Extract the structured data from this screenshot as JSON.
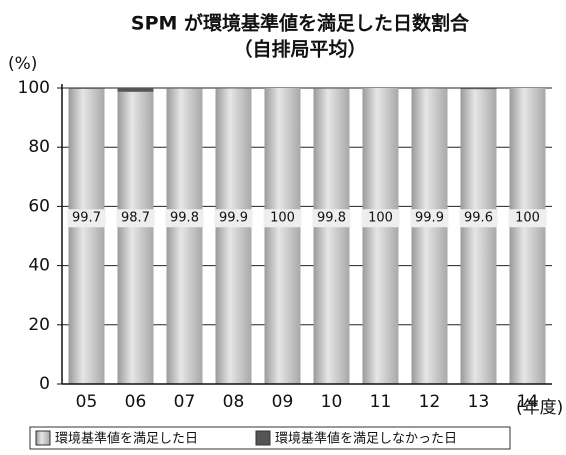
{
  "chart_data": {
    "type": "bar",
    "stacked": true,
    "title": "SPM が環境基準値を満足した日数割合",
    "subtitle": "（自排局平均）",
    "y_label": "(%)",
    "x_label": "(年度)",
    "categories": [
      "05",
      "06",
      "07",
      "08",
      "09",
      "10",
      "11",
      "12",
      "13",
      "14"
    ],
    "series": [
      {
        "name": "環境基準値を満足した日",
        "color": "#c8c8c8",
        "values": [
          99.7,
          98.7,
          99.8,
          99.9,
          100,
          99.8,
          100,
          99.9,
          99.6,
          100
        ]
      },
      {
        "name": "環境基準値を満足しなかった日",
        "color": "#555555",
        "values": [
          0.3,
          1.3,
          0.2,
          0.1,
          0,
          0.2,
          0,
          0.1,
          0.4,
          0
        ]
      }
    ],
    "ylim": [
      0,
      100
    ],
    "yticks": [
      0,
      20,
      40,
      60,
      80,
      100
    ],
    "grid": true
  }
}
